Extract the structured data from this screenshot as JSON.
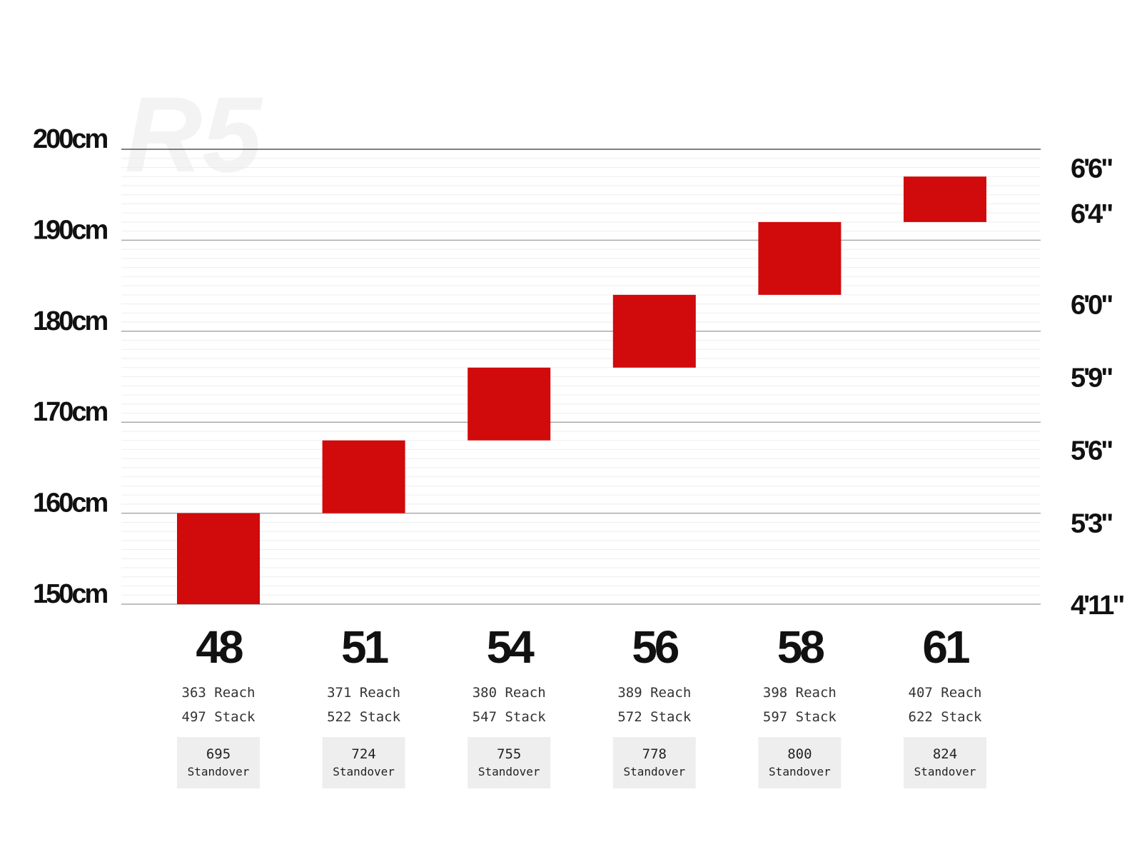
{
  "chart_data": {
    "type": "bar",
    "subtype": "floating-range",
    "watermark": "R5",
    "y_unit": "cm",
    "ylim": [
      150,
      200
    ],
    "left_ticks": [
      {
        "value": 200,
        "label": "200cm"
      },
      {
        "value": 190,
        "label": "190cm"
      },
      {
        "value": 180,
        "label": "180cm"
      },
      {
        "value": 170,
        "label": "170cm"
      },
      {
        "value": 160,
        "label": "160cm"
      },
      {
        "value": 150,
        "label": "150cm"
      }
    ],
    "right_ticks": [
      {
        "value": 198,
        "label": "6'6\""
      },
      {
        "value": 193,
        "label": "6'4\""
      },
      {
        "value": 183,
        "label": "6'0\""
      },
      {
        "value": 175,
        "label": "5'9\""
      },
      {
        "value": 167,
        "label": "5'6\""
      },
      {
        "value": 159,
        "label": "5'3\""
      },
      {
        "value": 150,
        "label": "4'11\""
      }
    ],
    "grid": true,
    "bar_color": "#d10a0b",
    "categories": [
      "48",
      "51",
      "54",
      "56",
      "58",
      "61"
    ],
    "ranges": [
      [
        150,
        160
      ],
      [
        160,
        168
      ],
      [
        168,
        176
      ],
      [
        176,
        184
      ],
      [
        184,
        192
      ],
      [
        192,
        197
      ]
    ],
    "geometry": [
      {
        "size": "48",
        "reach": "363",
        "stack": "497",
        "standover": "695"
      },
      {
        "size": "51",
        "reach": "371",
        "stack": "522",
        "standover": "724"
      },
      {
        "size": "54",
        "reach": "380",
        "stack": "547",
        "standover": "755"
      },
      {
        "size": "56",
        "reach": "389",
        "stack": "572",
        "standover": "778"
      },
      {
        "size": "58",
        "reach": "398",
        "stack": "597",
        "standover": "800"
      },
      {
        "size": "61",
        "reach": "407",
        "stack": "622",
        "standover": "824"
      }
    ],
    "labels": {
      "reach": "Reach",
      "stack": "Stack",
      "standover": "Standover"
    }
  }
}
